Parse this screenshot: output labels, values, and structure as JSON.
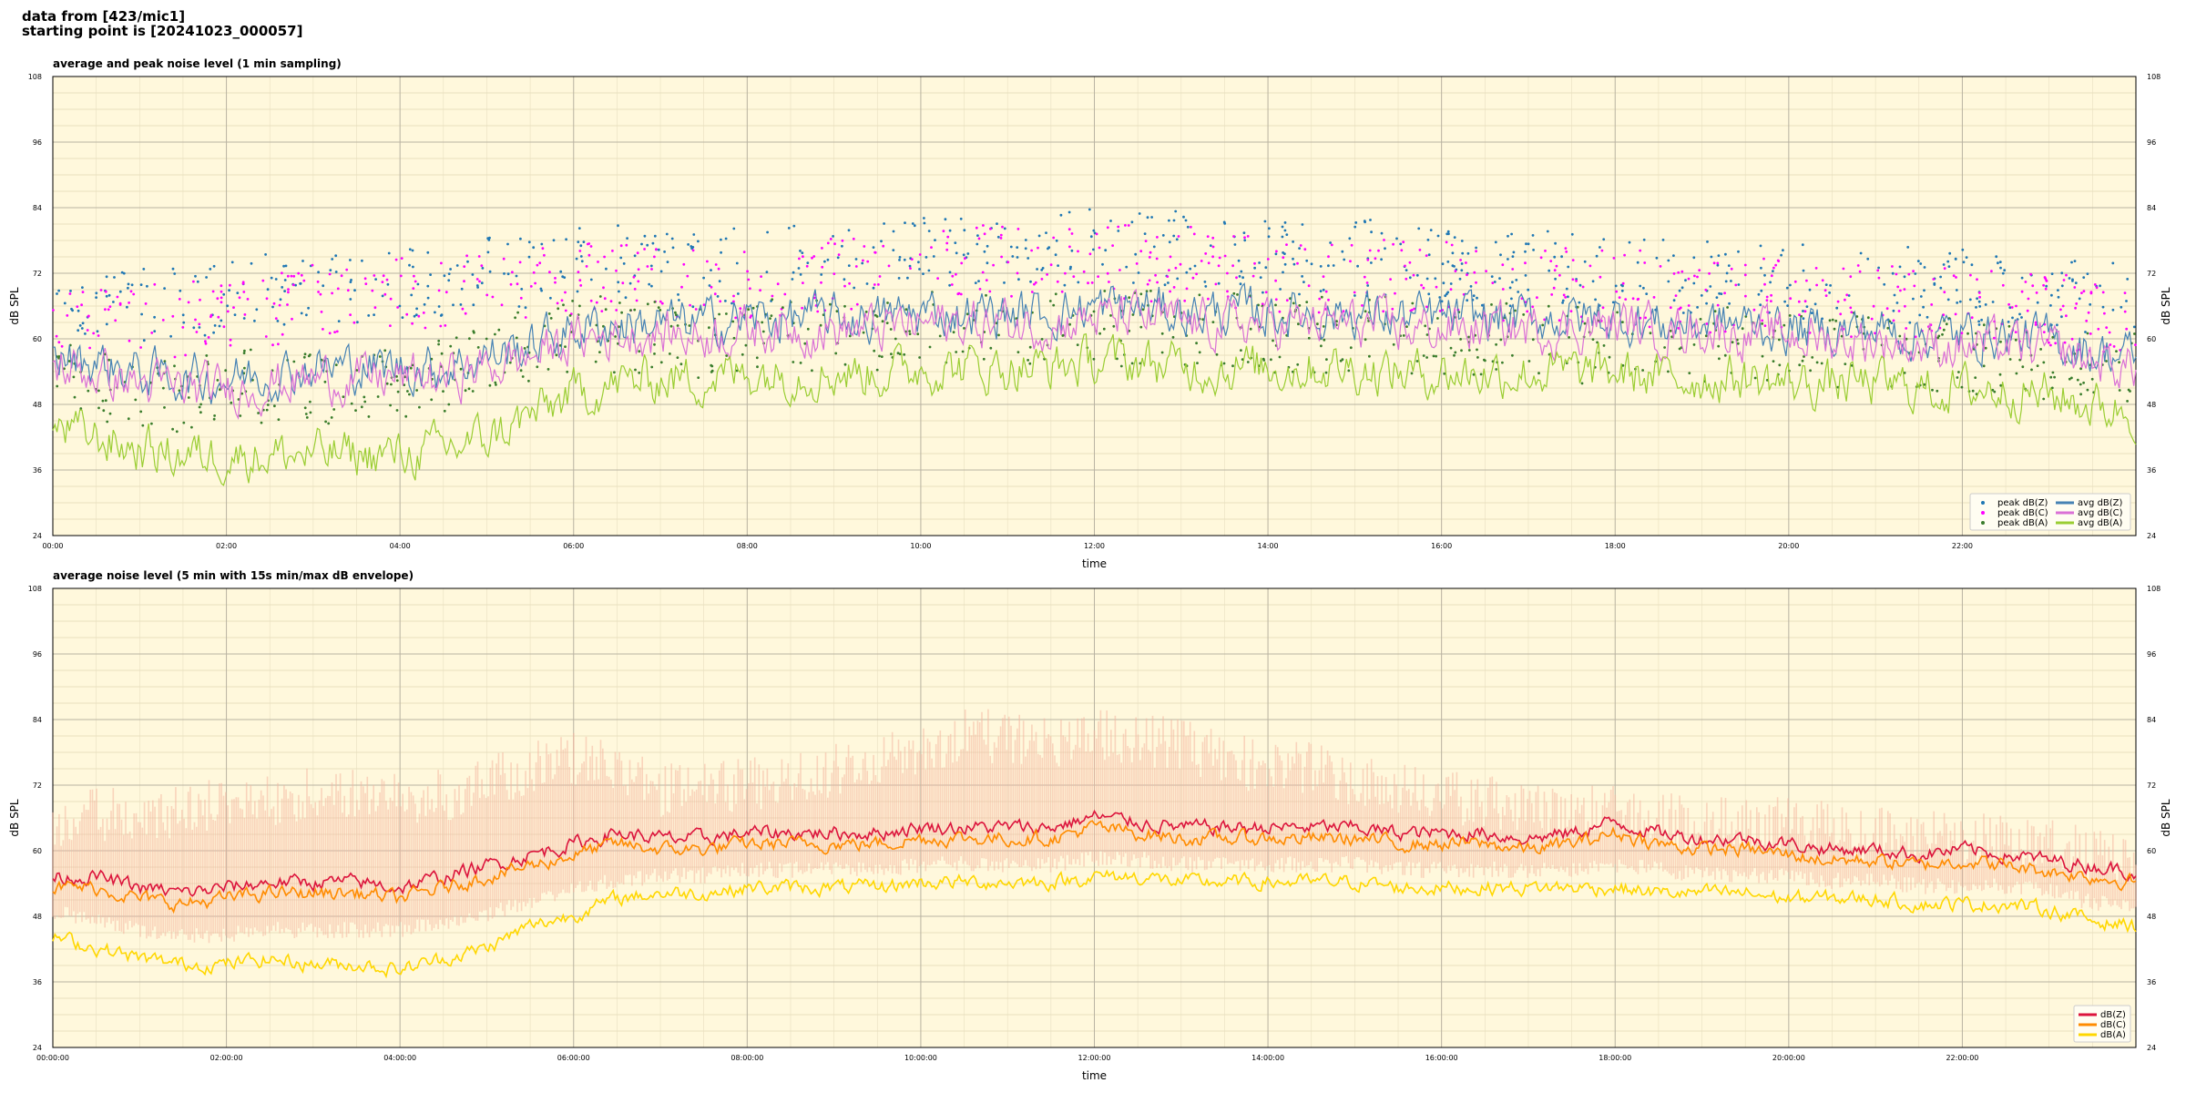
{
  "header": {
    "line1": "data from [423/mic1]",
    "line2": "starting point is [20241023_000057]"
  },
  "colors": {
    "plot_bg": "#fff8dc",
    "peak_z": "#1f77b4",
    "peak_c": "#ff00ff",
    "peak_a": "#3a7d2c",
    "avg_z": "#4682b4",
    "avg_c": "#da70d6",
    "avg_a": "#9acd32",
    "db_z": "#dc143c",
    "db_c": "#ff8c00",
    "db_a": "#ffd700",
    "envelope": "#f4b6a0"
  },
  "chart_data": [
    {
      "type": "line",
      "title": "average and peak noise level (1 min sampling)",
      "xlabel": "time",
      "ylabel": "dB SPL",
      "xlim": [
        "00:00",
        "24:00"
      ],
      "ylim": [
        24,
        108
      ],
      "yticks": [
        24,
        36,
        48,
        60,
        72,
        84,
        96,
        108
      ],
      "xticks": [
        "00:00",
        "02:00",
        "04:00",
        "06:00",
        "08:00",
        "10:00",
        "12:00",
        "14:00",
        "16:00",
        "18:00",
        "20:00",
        "22:00"
      ],
      "grid": true,
      "legend_position": "lower-right",
      "x_hours": [
        0,
        0.5,
        1,
        1.5,
        2,
        2.5,
        3,
        3.5,
        4,
        4.5,
        5,
        5.5,
        6,
        6.5,
        7,
        7.5,
        8,
        8.5,
        9,
        9.5,
        10,
        10.5,
        11,
        11.5,
        12,
        12.5,
        13,
        13.5,
        14,
        14.5,
        15,
        15.5,
        16,
        16.5,
        17,
        17.5,
        18,
        18.5,
        19,
        19.5,
        20,
        20.5,
        21,
        21.5,
        22,
        22.5,
        23,
        23.5,
        24
      ],
      "series": [
        {
          "name": "peak dB(Z)",
          "kind": "points",
          "values": [
            66,
            64,
            63,
            64,
            65,
            66,
            67,
            67,
            68,
            68,
            69,
            70,
            71,
            71,
            70,
            70,
            71,
            71,
            72,
            72,
            73,
            74,
            74,
            74,
            74,
            74,
            74,
            73,
            72,
            72,
            72,
            72,
            71,
            70,
            70,
            70,
            70,
            69,
            68,
            68,
            68,
            67,
            67,
            67,
            67,
            66,
            65,
            65,
            64
          ]
        },
        {
          "name": "peak dB(C)",
          "kind": "points",
          "values": [
            63,
            61,
            60,
            61,
            62,
            63,
            64,
            64,
            65,
            65,
            66,
            67,
            68,
            68,
            67,
            67,
            68,
            68,
            69,
            69,
            70,
            71,
            71,
            71,
            71,
            71,
            71,
            70,
            69,
            69,
            69,
            69,
            68,
            67,
            67,
            67,
            67,
            66,
            65,
            65,
            65,
            64,
            64,
            64,
            64,
            63,
            62,
            62,
            61
          ]
        },
        {
          "name": "peak dB(A)",
          "kind": "points",
          "values": [
            52,
            49,
            47,
            47,
            48,
            49,
            48,
            48,
            49,
            50,
            53,
            56,
            58,
            58,
            57,
            57,
            58,
            58,
            58,
            58,
            59,
            59,
            59,
            59,
            59,
            59,
            59,
            59,
            58,
            58,
            58,
            58,
            57,
            57,
            57,
            56,
            56,
            56,
            56,
            56,
            55,
            55,
            55,
            54,
            54,
            54,
            53,
            52,
            52
          ]
        },
        {
          "name": "avg dB(Z)",
          "kind": "line",
          "values": [
            56,
            55,
            53,
            52,
            52,
            53,
            54,
            54,
            54,
            54,
            56,
            58,
            61,
            62,
            62,
            62,
            63,
            63,
            63,
            63,
            64,
            64,
            64,
            64,
            65,
            65,
            64,
            64,
            64,
            64,
            64,
            63,
            63,
            63,
            63,
            63,
            63,
            62,
            62,
            62,
            61,
            61,
            61,
            60,
            60,
            60,
            59,
            57,
            56
          ]
        },
        {
          "name": "avg dB(C)",
          "kind": "line",
          "values": [
            54,
            53,
            51,
            50,
            50,
            51,
            52,
            52,
            52,
            52,
            54,
            56,
            59,
            60,
            60,
            60,
            61,
            61,
            61,
            61,
            62,
            62,
            62,
            62,
            63,
            63,
            62,
            62,
            62,
            62,
            62,
            61,
            61,
            61,
            61,
            61,
            62,
            61,
            61,
            60,
            60,
            59,
            59,
            58,
            58,
            58,
            57,
            55,
            54
          ]
        },
        {
          "name": "avg dB(A)",
          "kind": "line",
          "values": [
            43,
            41,
            39,
            38,
            38,
            38,
            38,
            38,
            38,
            39,
            41,
            45,
            49,
            51,
            52,
            52,
            53,
            53,
            53,
            53,
            54,
            54,
            54,
            54,
            55,
            55,
            54,
            54,
            54,
            54,
            54,
            53,
            53,
            53,
            53,
            53,
            53,
            52,
            52,
            52,
            51,
            51,
            51,
            50,
            50,
            50,
            49,
            47,
            46
          ]
        }
      ]
    },
    {
      "type": "line",
      "title": "average noise level (5 min with 15s min/max dB envelope)",
      "xlabel": "time",
      "ylabel": "dB SPL",
      "xlim": [
        "00:00:00",
        "24:00:00"
      ],
      "ylim": [
        24,
        108
      ],
      "yticks": [
        24,
        36,
        48,
        60,
        72,
        84,
        96,
        108
      ],
      "xticks": [
        "00:00:00",
        "02:00:00",
        "04:00:00",
        "06:00:00",
        "08:00:00",
        "10:00:00",
        "12:00:00",
        "14:00:00",
        "16:00:00",
        "18:00:00",
        "20:00:00",
        "22:00:00"
      ],
      "grid": true,
      "legend_position": "lower-right",
      "x_hours": [
        0,
        0.5,
        1,
        1.5,
        2,
        2.5,
        3,
        3.5,
        4,
        4.5,
        5,
        5.5,
        6,
        6.5,
        7,
        7.5,
        8,
        8.5,
        9,
        9.5,
        10,
        10.5,
        11,
        11.5,
        12,
        12.5,
        13,
        13.5,
        14,
        14.5,
        15,
        15.5,
        16,
        16.5,
        17,
        17.5,
        18,
        18.5,
        19,
        19.5,
        20,
        20.5,
        21,
        21.5,
        22,
        22.5,
        23,
        23.5,
        24
      ],
      "series": [
        {
          "name": "dB(Z)",
          "values": [
            55,
            55,
            53,
            52,
            53,
            54,
            54,
            54,
            53,
            55,
            57,
            59,
            61,
            63,
            62,
            62,
            63,
            63,
            63,
            63,
            64,
            64,
            64,
            64,
            66,
            65,
            64,
            64,
            64,
            64,
            64,
            63,
            63,
            63,
            62,
            63,
            65,
            63,
            62,
            62,
            61,
            60,
            60,
            59,
            60,
            59,
            58,
            57,
            56
          ]
        },
        {
          "name": "dB(C)",
          "values": [
            53,
            53,
            51,
            50,
            51,
            52,
            52,
            52,
            51,
            53,
            55,
            57,
            59,
            61,
            60,
            60,
            61,
            61,
            61,
            61,
            62,
            62,
            62,
            62,
            64,
            63,
            62,
            62,
            62,
            62,
            62,
            61,
            61,
            61,
            60,
            61,
            63,
            61,
            60,
            60,
            59,
            58,
            58,
            57,
            58,
            57,
            56,
            55,
            54
          ]
        },
        {
          "name": "dB(A)",
          "values": [
            44,
            42,
            40,
            39,
            39,
            40,
            39,
            39,
            38,
            40,
            42,
            46,
            48,
            51,
            52,
            52,
            53,
            53,
            53,
            53,
            54,
            54,
            54,
            54,
            55,
            55,
            54,
            54,
            54,
            54,
            54,
            53,
            53,
            53,
            53,
            53,
            53,
            52,
            52,
            52,
            51,
            51,
            51,
            50,
            50,
            50,
            49,
            47,
            46
          ]
        }
      ],
      "envelope": {
        "name": "15s min/max dB envelope",
        "min": [
          50,
          49,
          47,
          46,
          46,
          47,
          47,
          47,
          47,
          48,
          50,
          52,
          55,
          56,
          57,
          57,
          58,
          58,
          58,
          58,
          59,
          59,
          59,
          59,
          60,
          60,
          59,
          59,
          59,
          59,
          59,
          58,
          58,
          58,
          58,
          58,
          59,
          58,
          57,
          57,
          57,
          56,
          56,
          55,
          55,
          55,
          54,
          52,
          51
        ],
        "max": [
          70,
          72,
          71,
          72,
          74,
          74,
          76,
          75,
          75,
          75,
          78,
          80,
          82,
          80,
          76,
          76,
          77,
          78,
          80,
          82,
          84,
          86,
          86,
          85,
          86,
          86,
          84,
          82,
          80,
          80,
          78,
          76,
          75,
          74,
          73,
          72,
          72,
          71,
          70,
          70,
          70,
          69,
          68,
          68,
          67,
          67,
          66,
          64,
          63
        ]
      }
    }
  ]
}
